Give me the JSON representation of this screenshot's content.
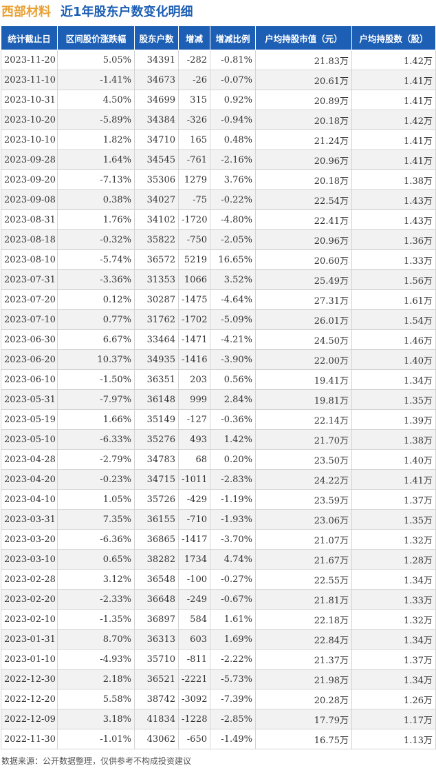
{
  "header": {
    "name": "西部材料",
    "subtitle": "近1年股东户数变化明细"
  },
  "table": {
    "columns": [
      "统计截止日",
      "区间股价涨跌幅",
      "股东户数",
      "增减",
      "增减比例",
      "户均持股市值（元）",
      "户均持股数（股）"
    ],
    "rows": [
      {
        "date": "2023-11-20",
        "change": "5.05%",
        "holders": "34391",
        "diff": "-282",
        "ratio": "-0.81%",
        "value": "21.83万",
        "shares": "1.42万"
      },
      {
        "date": "2023-11-10",
        "change": "-1.41%",
        "holders": "34673",
        "diff": "-26",
        "ratio": "-0.07%",
        "value": "20.61万",
        "shares": "1.41万"
      },
      {
        "date": "2023-10-31",
        "change": "4.50%",
        "holders": "34699",
        "diff": "315",
        "ratio": "0.92%",
        "value": "20.89万",
        "shares": "1.41万"
      },
      {
        "date": "2023-10-20",
        "change": "-5.89%",
        "holders": "34384",
        "diff": "-326",
        "ratio": "-0.94%",
        "value": "20.18万",
        "shares": "1.42万"
      },
      {
        "date": "2023-10-10",
        "change": "1.82%",
        "holders": "34710",
        "diff": "165",
        "ratio": "0.48%",
        "value": "21.24万",
        "shares": "1.41万"
      },
      {
        "date": "2023-09-28",
        "change": "1.64%",
        "holders": "34545",
        "diff": "-761",
        "ratio": "-2.16%",
        "value": "20.96万",
        "shares": "1.41万"
      },
      {
        "date": "2023-09-20",
        "change": "-7.13%",
        "holders": "35306",
        "diff": "1279",
        "ratio": "3.76%",
        "value": "20.18万",
        "shares": "1.38万"
      },
      {
        "date": "2023-09-08",
        "change": "0.38%",
        "holders": "34027",
        "diff": "-75",
        "ratio": "-0.22%",
        "value": "22.54万",
        "shares": "1.43万"
      },
      {
        "date": "2023-08-31",
        "change": "1.76%",
        "holders": "34102",
        "diff": "-1720",
        "ratio": "-4.80%",
        "value": "22.41万",
        "shares": "1.43万"
      },
      {
        "date": "2023-08-18",
        "change": "-0.32%",
        "holders": "35822",
        "diff": "-750",
        "ratio": "-2.05%",
        "value": "20.96万",
        "shares": "1.36万"
      },
      {
        "date": "2023-08-10",
        "change": "-5.74%",
        "holders": "36572",
        "diff": "5219",
        "ratio": "16.65%",
        "value": "20.60万",
        "shares": "1.33万"
      },
      {
        "date": "2023-07-31",
        "change": "-3.36%",
        "holders": "31353",
        "diff": "1066",
        "ratio": "3.52%",
        "value": "25.49万",
        "shares": "1.56万"
      },
      {
        "date": "2023-07-20",
        "change": "0.12%",
        "holders": "30287",
        "diff": "-1475",
        "ratio": "-4.64%",
        "value": "27.31万",
        "shares": "1.61万"
      },
      {
        "date": "2023-07-10",
        "change": "0.77%",
        "holders": "31762",
        "diff": "-1702",
        "ratio": "-5.09%",
        "value": "26.01万",
        "shares": "1.54万"
      },
      {
        "date": "2023-06-30",
        "change": "6.67%",
        "holders": "33464",
        "diff": "-1471",
        "ratio": "-4.21%",
        "value": "24.50万",
        "shares": "1.46万"
      },
      {
        "date": "2023-06-20",
        "change": "10.37%",
        "holders": "34935",
        "diff": "-1416",
        "ratio": "-3.90%",
        "value": "22.00万",
        "shares": "1.40万"
      },
      {
        "date": "2023-06-10",
        "change": "-1.50%",
        "holders": "36351",
        "diff": "203",
        "ratio": "0.56%",
        "value": "19.41万",
        "shares": "1.34万"
      },
      {
        "date": "2023-05-31",
        "change": "-7.97%",
        "holders": "36148",
        "diff": "999",
        "ratio": "2.84%",
        "value": "19.81万",
        "shares": "1.35万"
      },
      {
        "date": "2023-05-19",
        "change": "1.66%",
        "holders": "35149",
        "diff": "-127",
        "ratio": "-0.36%",
        "value": "22.14万",
        "shares": "1.39万"
      },
      {
        "date": "2023-05-10",
        "change": "-6.33%",
        "holders": "35276",
        "diff": "493",
        "ratio": "1.42%",
        "value": "21.70万",
        "shares": "1.38万"
      },
      {
        "date": "2023-04-28",
        "change": "-2.79%",
        "holders": "34783",
        "diff": "68",
        "ratio": "0.20%",
        "value": "23.50万",
        "shares": "1.40万"
      },
      {
        "date": "2023-04-20",
        "change": "-0.23%",
        "holders": "34715",
        "diff": "-1011",
        "ratio": "-2.83%",
        "value": "24.22万",
        "shares": "1.41万"
      },
      {
        "date": "2023-04-10",
        "change": "1.05%",
        "holders": "35726",
        "diff": "-429",
        "ratio": "-1.19%",
        "value": "23.59万",
        "shares": "1.37万"
      },
      {
        "date": "2023-03-31",
        "change": "7.35%",
        "holders": "36155",
        "diff": "-710",
        "ratio": "-1.93%",
        "value": "23.06万",
        "shares": "1.35万"
      },
      {
        "date": "2023-03-20",
        "change": "-6.36%",
        "holders": "36865",
        "diff": "-1417",
        "ratio": "-3.70%",
        "value": "21.07万",
        "shares": "1.32万"
      },
      {
        "date": "2023-03-10",
        "change": "0.65%",
        "holders": "38282",
        "diff": "1734",
        "ratio": "4.74%",
        "value": "21.67万",
        "shares": "1.28万"
      },
      {
        "date": "2023-02-28",
        "change": "3.12%",
        "holders": "36548",
        "diff": "-100",
        "ratio": "-0.27%",
        "value": "22.55万",
        "shares": "1.34万"
      },
      {
        "date": "2023-02-20",
        "change": "-2.33%",
        "holders": "36648",
        "diff": "-249",
        "ratio": "-0.67%",
        "value": "21.81万",
        "shares": "1.33万"
      },
      {
        "date": "2023-02-10",
        "change": "-1.35%",
        "holders": "36897",
        "diff": "584",
        "ratio": "1.61%",
        "value": "22.18万",
        "shares": "1.32万"
      },
      {
        "date": "2023-01-31",
        "change": "8.70%",
        "holders": "36313",
        "diff": "603",
        "ratio": "1.69%",
        "value": "22.84万",
        "shares": "1.34万"
      },
      {
        "date": "2023-01-10",
        "change": "-4.93%",
        "holders": "35710",
        "diff": "-811",
        "ratio": "-2.22%",
        "value": "21.37万",
        "shares": "1.37万"
      },
      {
        "date": "2022-12-30",
        "change": "2.18%",
        "holders": "36521",
        "diff": "-2221",
        "ratio": "-5.73%",
        "value": "21.98万",
        "shares": "1.34万"
      },
      {
        "date": "2022-12-20",
        "change": "5.58%",
        "holders": "38742",
        "diff": "-3092",
        "ratio": "-7.39%",
        "value": "20.28万",
        "shares": "1.26万"
      },
      {
        "date": "2022-12-09",
        "change": "3.18%",
        "holders": "41834",
        "diff": "-1228",
        "ratio": "-2.85%",
        "value": "17.79万",
        "shares": "1.17万"
      },
      {
        "date": "2022-11-30",
        "change": "-1.01%",
        "holders": "43062",
        "diff": "-650",
        "ratio": "-1.49%",
        "value": "16.75万",
        "shares": "1.13万"
      }
    ]
  },
  "footer": {
    "text": "数据来源：公开数据整理，仅供参考不构成投资建议"
  },
  "colors": {
    "header_bg": "#1d5fb4",
    "title_name": "#e8a133",
    "title_sub": "#1d5fb4",
    "positive": "#e02020",
    "negative": "#1a9a28"
  }
}
